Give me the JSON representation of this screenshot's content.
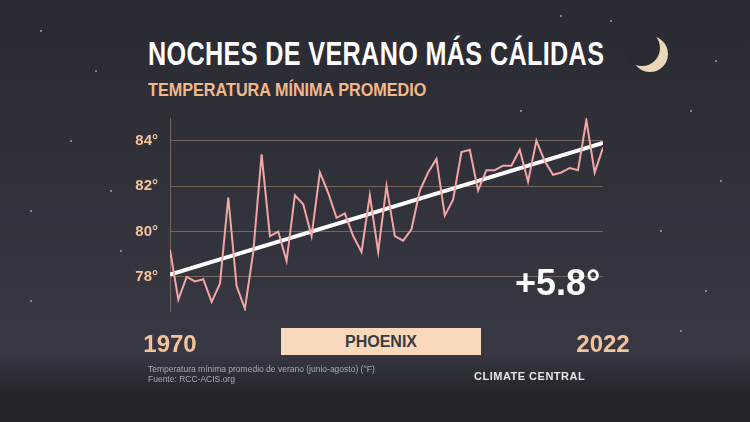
{
  "chart_data": {
    "type": "line",
    "title": "NOCHES DE VERANO MÁS CÁLIDAS",
    "subtitle": "TEMPERATURA MÍNIMA PROMEDIO",
    "annotation": "+5.8°",
    "location": "PHOENIX",
    "note": "Temperatura mínima promedio de verano (junio-agosto) (°F)",
    "source": "Fuente: RCC-ACIS.org",
    "logo": "CLIMATE CENTRAL",
    "x": [
      1970,
      1971,
      1972,
      1973,
      1974,
      1975,
      1976,
      1977,
      1978,
      1979,
      1980,
      1981,
      1982,
      1983,
      1984,
      1985,
      1986,
      1987,
      1988,
      1989,
      1990,
      1991,
      1992,
      1993,
      1994,
      1995,
      1996,
      1997,
      1998,
      1999,
      2000,
      2001,
      2002,
      2003,
      2004,
      2005,
      2006,
      2007,
      2008,
      2009,
      2010,
      2011,
      2012,
      2013,
      2014,
      2015,
      2016,
      2017,
      2018,
      2019,
      2020,
      2021,
      2022
    ],
    "series": [
      {
        "color": "#f2a6a6",
        "line_style": "solid",
        "values": [
          79.2,
          77.0,
          78.0,
          77.8,
          77.9,
          76.9,
          77.7,
          81.5,
          77.6,
          76.6,
          79.1,
          83.4,
          79.8,
          80.0,
          78.7,
          81.6,
          81.2,
          79.8,
          82.6,
          81.7,
          80.6,
          80.8,
          79.8,
          79.1,
          81.6,
          79.1,
          82.0,
          79.8,
          79.6,
          80.1,
          81.8,
          82.6,
          83.2,
          80.7,
          81.4,
          83.5,
          83.6,
          81.8,
          82.7,
          82.7,
          82.9,
          82.9,
          83.6,
          82.2,
          84.0,
          83.1,
          82.5,
          82.6,
          82.8,
          82.7,
          84.9,
          82.6,
          83.7
        ]
      },
      {
        "color": "#ffffff",
        "line_style": "solid",
        "x": [
          1970,
          2022
        ],
        "values": [
          78.1,
          83.9
        ]
      }
    ],
    "xlim": [
      1970,
      2022
    ],
    "xticks": [
      1970,
      2022
    ],
    "ylim": [
      76.5,
      85
    ],
    "yticks": [
      {
        "value": 78,
        "label": "78°"
      },
      {
        "value": 80,
        "label": "80°"
      },
      {
        "value": 82,
        "label": "82°"
      },
      {
        "value": 84,
        "label": "84°"
      }
    ],
    "grid": true
  }
}
